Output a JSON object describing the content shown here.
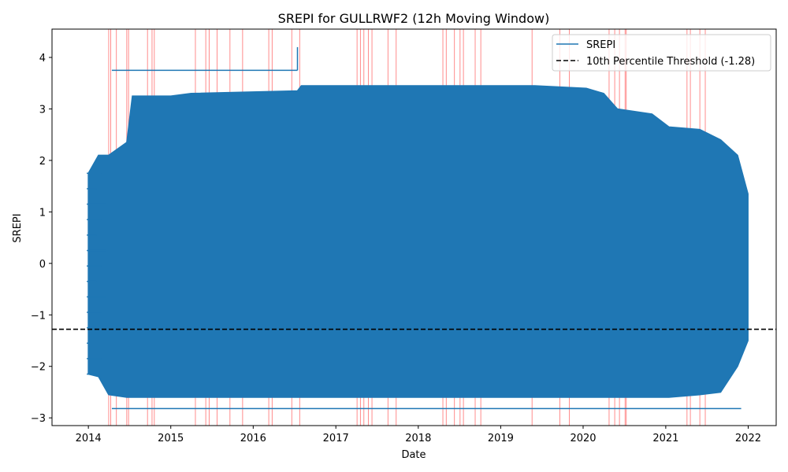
{
  "chart_data": {
    "type": "line",
    "title": "SREPI for GULLRWF2 (12h Moving Window)",
    "xlabel": "Date",
    "ylabel": "SREPI",
    "xlim": [
      "2013-07-24",
      "2022-05-05"
    ],
    "ylim": [
      -3.15,
      4.55
    ],
    "x_ticks": [
      "2014",
      "2015",
      "2016",
      "2017",
      "2018",
      "2019",
      "2020",
      "2021",
      "2022"
    ],
    "y_ticks": [
      -3,
      -2,
      -1,
      0,
      1,
      2,
      3,
      4
    ],
    "grid": false,
    "legend_position": "upper-right",
    "colors": {
      "series": "#1f77b4",
      "threshold": "#000000",
      "drought": "#ff0000"
    },
    "series": [
      {
        "name": "SREPI",
        "envelope": [
          {
            "date": "2014-01-01",
            "min": -2.15,
            "max": 1.75
          },
          {
            "date": "2014-02-15",
            "min": -2.2,
            "max": 2.1
          },
          {
            "date": "2014-04-01",
            "min": -2.55,
            "max": 2.1
          },
          {
            "date": "2014-06-20",
            "min": -2.6,
            "max": 2.35
          },
          {
            "date": "2014-07-15",
            "min": -2.6,
            "max": 3.25
          },
          {
            "date": "2015-01-01",
            "min": -2.6,
            "max": 3.25
          },
          {
            "date": "2015-04-01",
            "min": -2.6,
            "max": 3.3
          },
          {
            "date": "2016-07-15",
            "min": -2.6,
            "max": 3.35
          },
          {
            "date": "2016-08-01",
            "min": -2.6,
            "max": 3.45
          },
          {
            "date": "2019-06-01",
            "min": -2.6,
            "max": 3.45
          },
          {
            "date": "2020-01-15",
            "min": -2.6,
            "max": 3.4
          },
          {
            "date": "2020-04-01",
            "min": -2.6,
            "max": 3.3
          },
          {
            "date": "2020-06-01",
            "min": -2.6,
            "max": 3.0
          },
          {
            "date": "2020-11-01",
            "min": -2.6,
            "max": 2.9
          },
          {
            "date": "2021-01-15",
            "min": -2.6,
            "max": 2.65
          },
          {
            "date": "2021-06-01",
            "min": -2.55,
            "max": 2.6
          },
          {
            "date": "2021-09-01",
            "min": -2.5,
            "max": 2.4
          },
          {
            "date": "2021-11-15",
            "min": -2.0,
            "max": 2.1
          },
          {
            "date": "2021-12-31",
            "min": -1.5,
            "max": 1.35
          }
        ],
        "outliers": [
          {
            "start": "2014-04-15",
            "end": "2016-07-15",
            "value": 3.75
          },
          {
            "start": "2016-07-15",
            "end": "2016-07-15",
            "value": 4.2
          },
          {
            "start": "2014-04-15",
            "end": "2021-12-01",
            "value": -2.82
          }
        ]
      }
    ],
    "threshold": {
      "label": "10th Percentile Threshold (-1.28)",
      "value": -1.28
    },
    "drought_periods": [
      "2014-04-01",
      "2014-04-10",
      "2014-05-05",
      "2014-06-20",
      "2014-06-28",
      "2014-09-20",
      "2014-10-10",
      "2014-10-20",
      "2015-04-20",
      "2015-06-05",
      "2015-06-20",
      "2015-07-25",
      "2015-09-20",
      "2015-11-15",
      "2016-03-10",
      "2016-03-25",
      "2016-06-20",
      "2016-07-25",
      "2017-04-05",
      "2017-04-20",
      "2017-05-05",
      "2017-05-25",
      "2017-06-10",
      "2017-08-20",
      "2017-09-25",
      "2018-04-20",
      "2018-05-05",
      "2018-06-10",
      "2018-07-05",
      "2018-07-20",
      "2018-09-10",
      "2018-10-05",
      "2019-05-20",
      "2019-09-20",
      "2019-11-01",
      "2020-04-25",
      "2020-05-20",
      "2020-06-10",
      "2020-07-05",
      "2020-07-10",
      "2021-04-05",
      "2021-04-20",
      "2021-06-01",
      "2021-06-25"
    ]
  }
}
